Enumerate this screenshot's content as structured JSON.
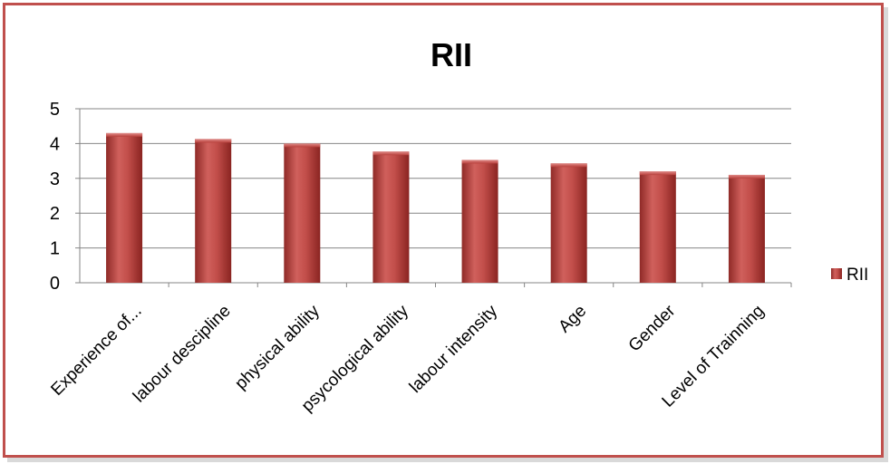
{
  "chart_data": {
    "type": "bar",
    "title": "RII",
    "categories": [
      "Experience of...",
      "labour descipline",
      "physical ability",
      "psycological ability",
      "labour intensity",
      "Age",
      "Gender",
      "Level of Trainning"
    ],
    "series": [
      {
        "name": "RII",
        "values": [
          4.3,
          4.13,
          4.0,
          3.77,
          3.53,
          3.43,
          3.2,
          3.1
        ],
        "color": "#c0504d"
      }
    ],
    "ylim": [
      0,
      5
    ],
    "yticks": [
      "0",
      "1",
      "2",
      "3",
      "4",
      "5"
    ],
    "grid": true,
    "legend": "right"
  },
  "colors": {
    "border": "#c0504d",
    "bar": "#c0504d",
    "bar_dark": "#8b2624",
    "grid": "#868686"
  }
}
